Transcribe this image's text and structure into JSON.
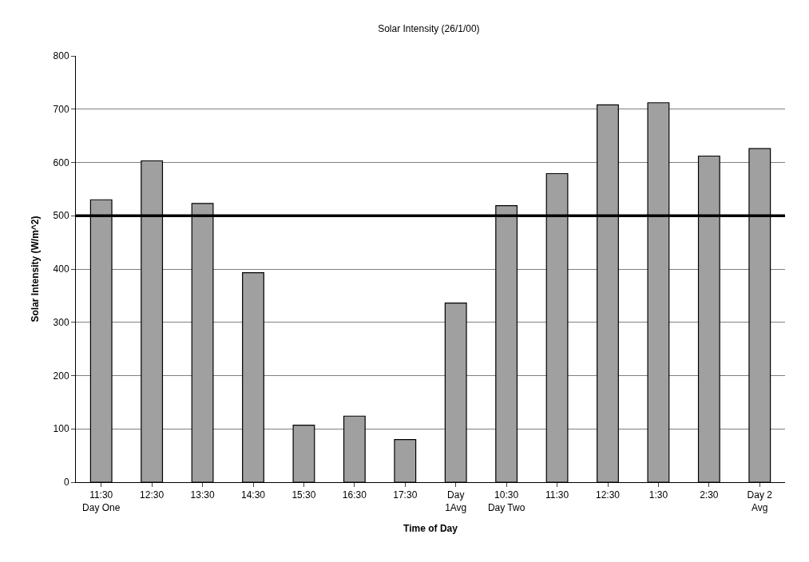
{
  "chart_data": {
    "type": "bar",
    "title": "Solar Intensity (26/1/00)",
    "xlabel": "Time of Day",
    "ylabel": "Solar Intensity (W/m^2)",
    "categories": [
      "11:30\nDay One",
      "12:30",
      "13:30",
      "14:30",
      "15:30",
      "16:30",
      "17:30",
      "Day\n1Avg",
      "10:30\nDay Two",
      "11:30",
      "12:30",
      "1:30",
      "2:30",
      "Day 2\nAvg"
    ],
    "values": [
      530,
      603,
      523,
      393,
      107,
      124,
      80,
      336,
      519,
      579,
      708,
      712,
      612,
      626
    ],
    "color": "#a0a0a0",
    "ylim": [
      0,
      800
    ],
    "yticks": [
      0,
      100,
      200,
      300,
      400,
      500,
      600,
      700,
      800
    ],
    "grid": "y",
    "ref_lines": [
      {
        "axis": "y",
        "value": 500,
        "color": "#000000",
        "line_style": "solid"
      }
    ]
  }
}
